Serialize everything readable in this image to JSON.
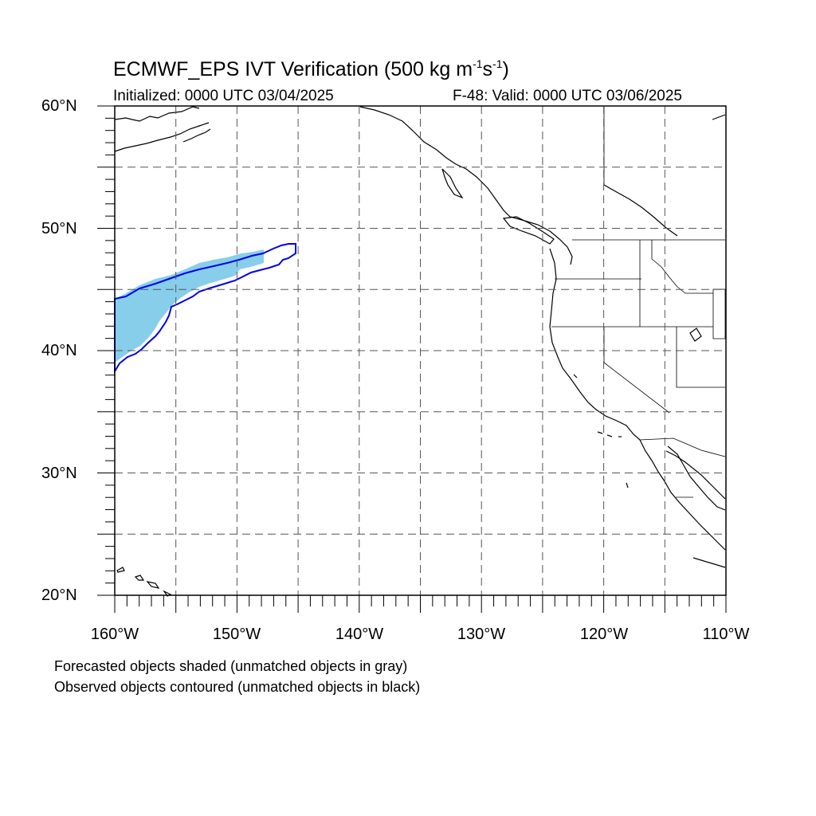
{
  "title": {
    "main_prefix": "ECMWF_EPS IVT Verification (500 kg m",
    "sup1": "-1",
    "mid": "s",
    "sup2": "-1",
    "suffix": ")"
  },
  "subtitle": {
    "initialized": "Initialized: 0000 UTC 03/04/2025",
    "valid": "F-48: Valid: 0000 UTC 03/06/2025"
  },
  "axes": {
    "lat_labels": [
      "60°N",
      "50°N",
      "40°N",
      "30°N",
      "20°N"
    ],
    "lon_labels": [
      "160°W",
      "150°W",
      "140°W",
      "130°W",
      "120°W",
      "110°W"
    ],
    "lon_range": [
      -160,
      -110
    ],
    "lat_range": [
      20,
      60
    ]
  },
  "legend": {
    "line1": "Forecasted objects shaded (unmatched objects in gray)",
    "line2": "Observed objects contoured (unmatched objects in black)"
  },
  "colors": {
    "forecast_fill": "#87ceeb",
    "observed_contour": "#0000ee",
    "coastline": "#000000",
    "grid": "#555555"
  }
}
